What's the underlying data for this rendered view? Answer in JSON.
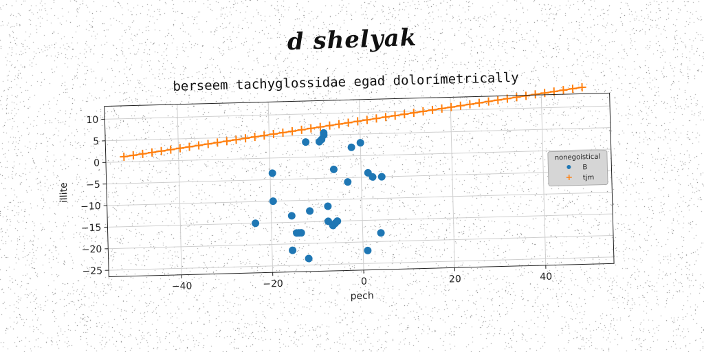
{
  "suptitle": "d shelyak",
  "chart_data": {
    "type": "scatter",
    "title": "berseem tachyglossidae egad dolorimetrically",
    "xlabel": "pech",
    "ylabel": "illite",
    "xlim": [
      -56,
      55
    ],
    "ylim": [
      -26.5,
      13
    ],
    "xticks": [
      -40,
      -20,
      0,
      20,
      40
    ],
    "yticks": [
      10,
      5,
      0,
      -5,
      -10,
      -15,
      -20,
      -25
    ],
    "grid": true,
    "legend": {
      "title": "nonegoistical",
      "placement": "right"
    },
    "series": [
      {
        "name": "B",
        "color": "#1f77b4",
        "marker": "circle",
        "points": [
          [
            -23.5,
            -15
          ],
          [
            -19.5,
            -3.5
          ],
          [
            -19.5,
            -10
          ],
          [
            -15.5,
            -13.5
          ],
          [
            -15.5,
            -21.5
          ],
          [
            -14.5,
            -17.5
          ],
          [
            -14,
            -17.5
          ],
          [
            -13.5,
            -17.5
          ],
          [
            -12,
            3.5
          ],
          [
            -12,
            -23.5
          ],
          [
            -11.5,
            -12.5
          ],
          [
            -9,
            3.5
          ],
          [
            -8.5,
            4
          ],
          [
            -8,
            5
          ],
          [
            -8,
            5.5
          ],
          [
            -7.5,
            -11.5
          ],
          [
            -7.5,
            -15
          ],
          [
            -6.5,
            -16
          ],
          [
            -6,
            -15.5
          ],
          [
            -5.5,
            -15
          ],
          [
            -6,
            -3
          ],
          [
            -3,
            -6
          ],
          [
            -2,
            2
          ],
          [
            0,
            3
          ],
          [
            1,
            -22
          ],
          [
            1.5,
            -4
          ],
          [
            2.5,
            -5
          ],
          [
            4.5,
            -5
          ],
          [
            4,
            -18
          ]
        ]
      },
      {
        "name": "tjm",
        "color": "#ff7f0e",
        "marker": "plus",
        "x_start": -52,
        "x_end": 49,
        "y_start": 1.2,
        "y_end": 14.5,
        "count": 50
      }
    ]
  }
}
